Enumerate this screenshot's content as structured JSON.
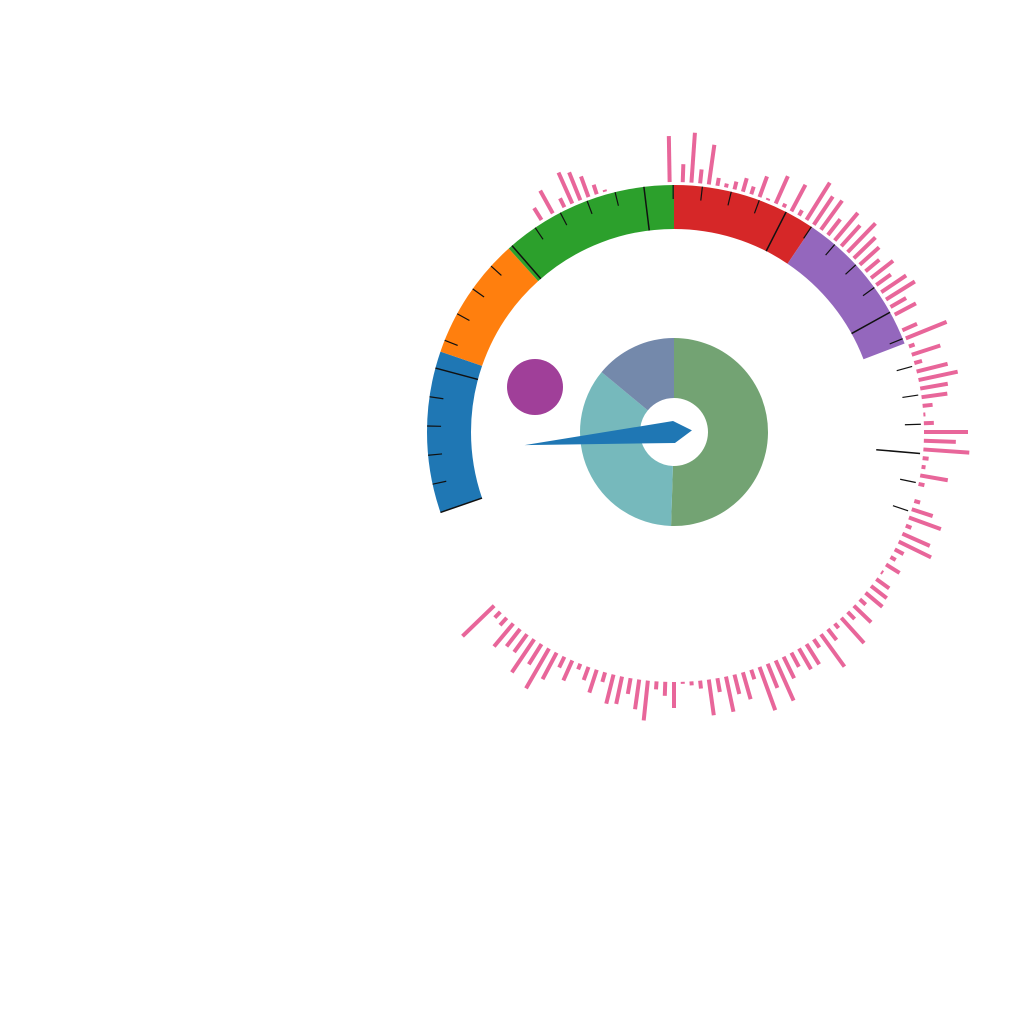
{
  "chart_data": {
    "type": "gauge",
    "title": "",
    "gauge": {
      "start_angle_deg": -109,
      "end_angle_deg": 109,
      "needle_angle_deg": 265,
      "bands": [
        {
          "from": -109,
          "to": -71,
          "color": "#1f77b4"
        },
        {
          "from": -71,
          "to": -42,
          "color": "#ff7f0e"
        },
        {
          "from": -42,
          "to": 0,
          "color": "#2ca02c"
        },
        {
          "from": 0,
          "to": 34,
          "color": "#d62728"
        },
        {
          "from": 34,
          "to": 69,
          "color": "#9467bd"
        }
      ],
      "needle_color": "#1f77b4"
    },
    "donut": {
      "slices": [
        {
          "value": 50.5,
          "color": "#73a373"
        },
        {
          "value": 35.5,
          "color": "#76b9bc"
        },
        {
          "value": 14.0,
          "color": "#7489ab"
        }
      ]
    },
    "marker": {
      "color": "#a03f99"
    },
    "radial_bars": {
      "color": "#e8669a",
      "values": [
        [
          -32,
          14
        ],
        [
          -29,
          26
        ],
        [
          -26,
          10
        ],
        [
          -24,
          34
        ],
        [
          -22,
          30
        ],
        [
          -20,
          22
        ],
        [
          -18,
          10
        ],
        [
          -16,
          2
        ],
        [
          -1,
          46
        ],
        [
          2,
          18
        ],
        [
          4,
          50
        ],
        [
          6,
          14
        ],
        [
          8,
          40
        ],
        [
          10,
          8
        ],
        [
          12,
          4
        ],
        [
          14,
          8
        ],
        [
          16,
          14
        ],
        [
          18,
          8
        ],
        [
          20,
          22
        ],
        [
          22,
          2
        ],
        [
          24,
          30
        ],
        [
          26,
          4
        ],
        [
          28,
          30
        ],
        [
          30,
          6
        ],
        [
          32,
          44
        ],
        [
          34,
          34
        ],
        [
          36,
          36
        ],
        [
          38,
          20
        ],
        [
          40,
          36
        ],
        [
          42,
          28
        ],
        [
          44,
          40
        ],
        [
          46,
          30
        ],
        [
          48,
          26
        ],
        [
          50,
          18
        ],
        [
          52,
          28
        ],
        [
          54,
          18
        ],
        [
          56,
          30
        ],
        [
          58,
          34
        ],
        [
          60,
          18
        ],
        [
          62,
          24
        ],
        [
          66,
          16
        ],
        [
          68,
          44
        ],
        [
          70,
          6
        ],
        [
          72,
          30
        ],
        [
          74,
          8
        ],
        [
          76,
          32
        ],
        [
          78,
          40
        ],
        [
          80,
          28
        ],
        [
          82,
          26
        ],
        [
          84,
          10
        ],
        [
          86,
          2
        ],
        [
          88,
          10
        ],
        [
          90,
          44
        ],
        [
          92,
          32
        ],
        [
          94,
          46
        ],
        [
          96,
          6
        ],
        [
          98,
          4
        ],
        [
          100,
          28
        ],
        [
          102,
          6
        ],
        [
          106,
          6
        ],
        [
          108,
          22
        ],
        [
          110,
          34
        ],
        [
          112,
          6
        ],
        [
          114,
          30
        ],
        [
          116,
          36
        ],
        [
          118,
          10
        ],
        [
          120,
          6
        ],
        [
          122,
          16
        ],
        [
          124,
          2
        ],
        [
          126,
          16
        ],
        [
          128,
          20
        ],
        [
          130,
          22
        ],
        [
          132,
          8
        ],
        [
          134,
          24
        ],
        [
          136,
          10
        ],
        [
          138,
          34
        ],
        [
          140,
          6
        ],
        [
          142,
          14
        ],
        [
          144,
          40
        ],
        [
          146,
          10
        ],
        [
          148,
          24
        ],
        [
          150,
          24
        ],
        [
          152,
          16
        ],
        [
          154,
          24
        ],
        [
          156,
          44
        ],
        [
          158,
          26
        ],
        [
          160,
          46
        ],
        [
          162,
          10
        ],
        [
          164,
          28
        ],
        [
          166,
          20
        ],
        [
          168,
          36
        ],
        [
          170,
          14
        ],
        [
          172,
          36
        ],
        [
          174,
          8
        ],
        [
          176,
          4
        ],
        [
          178,
          2
        ],
        [
          180,
          26
        ],
        [
          182,
          14
        ],
        [
          184,
          8
        ],
        [
          186,
          40
        ],
        [
          188,
          30
        ],
        [
          190,
          16
        ],
        [
          192,
          28
        ],
        [
          194,
          30
        ],
        [
          196,
          10
        ],
        [
          198,
          24
        ],
        [
          200,
          14
        ],
        [
          202,
          6
        ],
        [
          204,
          22
        ],
        [
          206,
          12
        ],
        [
          208,
          30
        ],
        [
          210,
          46
        ],
        [
          212,
          24
        ],
        [
          214,
          40
        ],
        [
          216,
          22
        ],
        [
          218,
          22
        ],
        [
          220,
          30
        ],
        [
          222,
          10
        ],
        [
          224,
          8
        ],
        [
          226,
          44
        ]
      ]
    }
  }
}
